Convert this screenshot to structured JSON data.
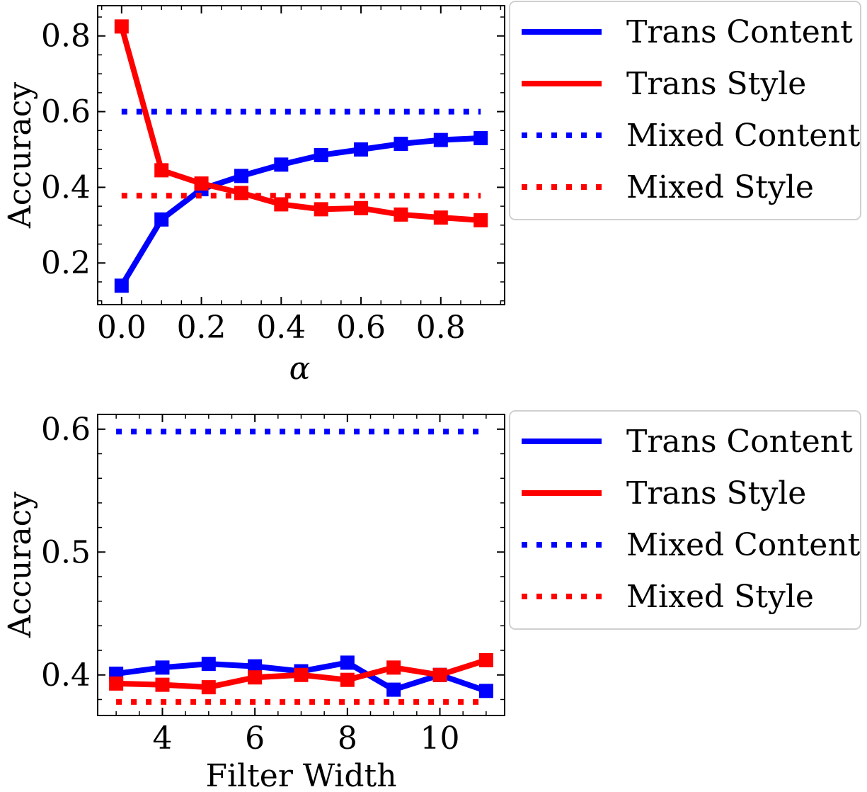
{
  "chart_data": [
    {
      "type": "line",
      "xlabel": "α",
      "ylabel": "Accuracy",
      "xlim": [
        -0.06,
        0.96
      ],
      "ylim": [
        0.09,
        0.88
      ],
      "xticks": [
        0.0,
        0.2,
        0.4,
        0.6,
        0.8
      ],
      "xtick_labels": [
        "0.0",
        "0.2",
        "0.4",
        "0.6",
        "0.8"
      ],
      "yticks": [
        0.2,
        0.4,
        0.6,
        0.8
      ],
      "ytick_labels": [
        "0.2",
        "0.4",
        "0.6",
        "0.8"
      ],
      "legend_position": "outside right",
      "series": [
        {
          "name": "Trans Content",
          "color": "#0000ff",
          "style": "solid",
          "marker": "square",
          "x": [
            0.0,
            0.1,
            0.2,
            0.3,
            0.4,
            0.5,
            0.6,
            0.7,
            0.8,
            0.9
          ],
          "y": [
            0.14,
            0.315,
            0.395,
            0.43,
            0.46,
            0.485,
            0.5,
            0.515,
            0.525,
            0.53
          ]
        },
        {
          "name": "Trans Style",
          "color": "#ff0000",
          "style": "solid",
          "marker": "square",
          "x": [
            0.0,
            0.1,
            0.2,
            0.3,
            0.4,
            0.5,
            0.6,
            0.7,
            0.8,
            0.9
          ],
          "y": [
            0.825,
            0.445,
            0.41,
            0.385,
            0.355,
            0.342,
            0.345,
            0.328,
            0.32,
            0.313
          ]
        },
        {
          "name": "Mixed Content",
          "color": "#0000ff",
          "style": "dotted",
          "x": [
            0.0,
            0.9
          ],
          "y": [
            0.6,
            0.6
          ]
        },
        {
          "name": "Mixed Style",
          "color": "#ff0000",
          "style": "dotted",
          "x": [
            0.0,
            0.9
          ],
          "y": [
            0.378,
            0.378
          ]
        }
      ]
    },
    {
      "type": "line",
      "xlabel": "Filter Width",
      "ylabel": "Accuracy",
      "xlim": [
        2.6,
        11.4
      ],
      "ylim": [
        0.367,
        0.612
      ],
      "xticks": [
        4,
        6,
        8,
        10
      ],
      "xtick_labels": [
        "4",
        "6",
        "8",
        "10"
      ],
      "yticks": [
        0.4,
        0.5,
        0.6
      ],
      "ytick_labels": [
        "0.4",
        "0.5",
        "0.6"
      ],
      "legend_position": "outside right",
      "series": [
        {
          "name": "Trans Content",
          "color": "#0000ff",
          "style": "solid",
          "marker": "square",
          "x": [
            3,
            4,
            5,
            6,
            7,
            8,
            9,
            10,
            11
          ],
          "y": [
            0.401,
            0.406,
            0.409,
            0.407,
            0.403,
            0.41,
            0.388,
            0.4,
            0.387
          ]
        },
        {
          "name": "Trans Style",
          "color": "#ff0000",
          "style": "solid",
          "marker": "square",
          "x": [
            3,
            4,
            5,
            6,
            7,
            8,
            9,
            10,
            11
          ],
          "y": [
            0.393,
            0.392,
            0.39,
            0.398,
            0.4,
            0.396,
            0.406,
            0.4,
            0.412
          ]
        },
        {
          "name": "Mixed Content",
          "color": "#0000ff",
          "style": "dotted",
          "x": [
            3,
            11
          ],
          "y": [
            0.598,
            0.598
          ]
        },
        {
          "name": "Mixed Style",
          "color": "#ff0000",
          "style": "dotted",
          "x": [
            3,
            11
          ],
          "y": [
            0.378,
            0.378
          ]
        }
      ]
    }
  ]
}
